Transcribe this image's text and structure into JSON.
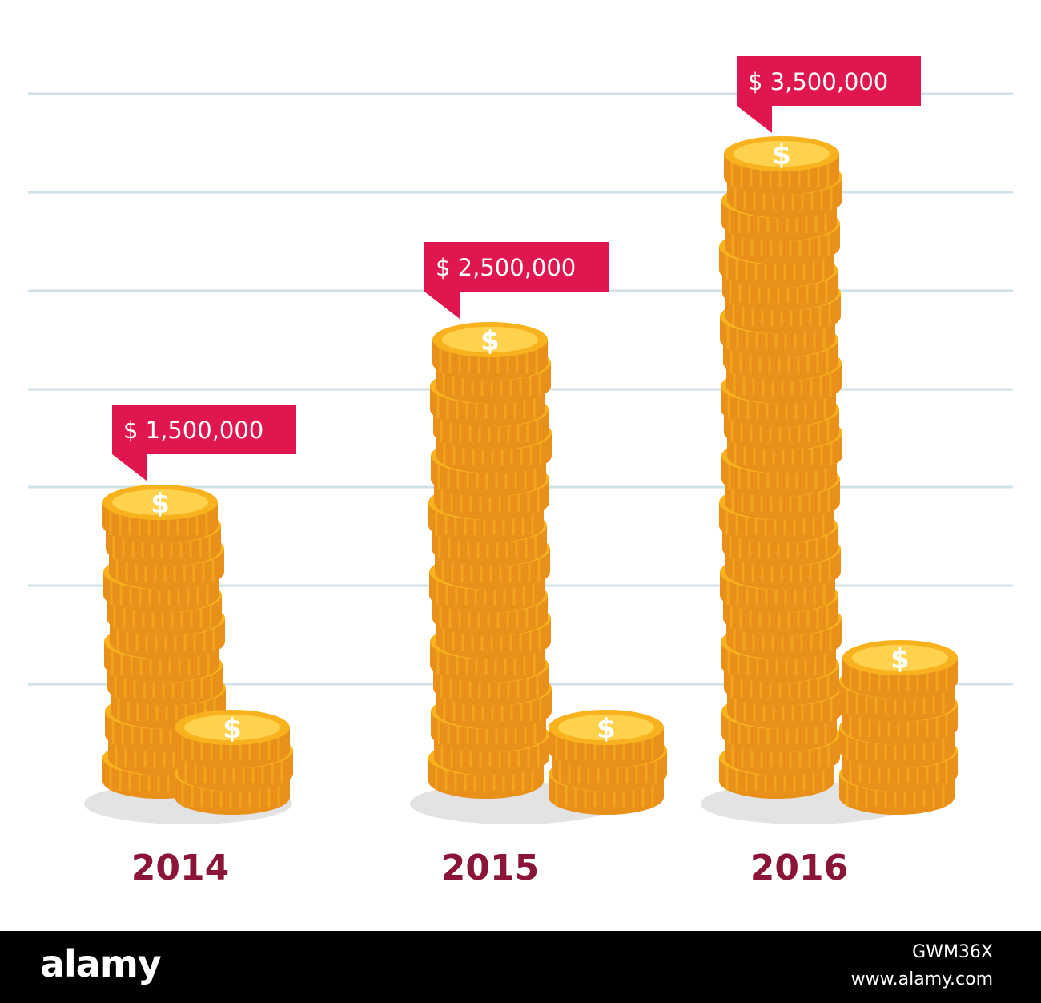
{
  "chart_data": {
    "type": "bar",
    "categories": [
      "2014",
      "2015",
      "2016"
    ],
    "values": [
      1500000,
      2500000,
      3500000
    ],
    "data_labels": [
      "$ 1,500,000",
      "$ 2,500,000",
      "$ 3,500,000"
    ],
    "title": "",
    "xlabel": "",
    "ylabel": "",
    "ylim": [
      0,
      4000000
    ],
    "grid": true,
    "legend": "none",
    "mark_style": "coin-stacks",
    "colors": {
      "coin": "#f7b21e",
      "coin_dark": "#e8901a",
      "coin_light": "#ffd24d",
      "label_bg": "#e0174f",
      "label_text": "#ffffff",
      "year_text": "#8a1538",
      "grid": "#cfe2ea",
      "shadow": "#e3e3e3"
    }
  },
  "watermark": {
    "logo": "alamy",
    "image_id": "GWM36X",
    "url": "www.alamy.com"
  }
}
